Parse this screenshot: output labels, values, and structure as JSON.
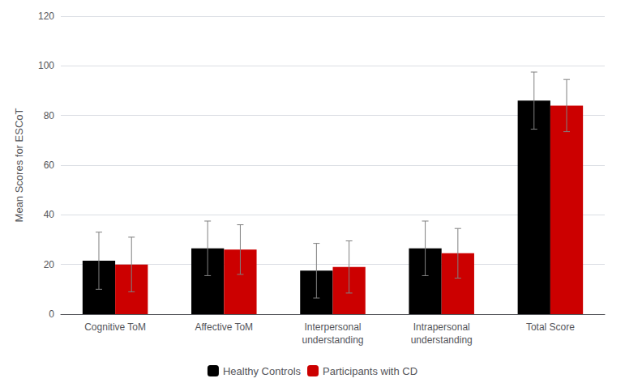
{
  "chart_data": {
    "type": "bar",
    "categories": [
      "Cognitive ToM",
      "Affective ToM",
      "Interpersonal\nunderstanding",
      "Intrapersonal\nunderstanding",
      "Total Score"
    ],
    "ylabel": "Mean Scores for ESCoT",
    "series": [
      {
        "name": "Healthy Controls",
        "color": "#000000",
        "values": [
          21.5,
          26.5,
          17.5,
          26.5,
          86.0
        ],
        "errors_upper": [
          11.5,
          11.0,
          11.0,
          11.0,
          11.5
        ],
        "errors_lower": [
          11.5,
          11.0,
          11.0,
          11.0,
          11.5
        ]
      },
      {
        "name": "Participants with CD",
        "color": "#cc0000",
        "values": [
          20.0,
          26.0,
          19.0,
          24.5,
          84.0
        ],
        "errors_upper": [
          11.0,
          10.0,
          10.5,
          10.0,
          10.5
        ],
        "errors_lower": [
          11.0,
          10.0,
          10.5,
          10.0,
          10.5
        ]
      }
    ],
    "ylim": [
      0,
      120
    ],
    "yticks": [
      0,
      20,
      40,
      60,
      80,
      100,
      120
    ],
    "grid": true,
    "legend": "bottom"
  }
}
